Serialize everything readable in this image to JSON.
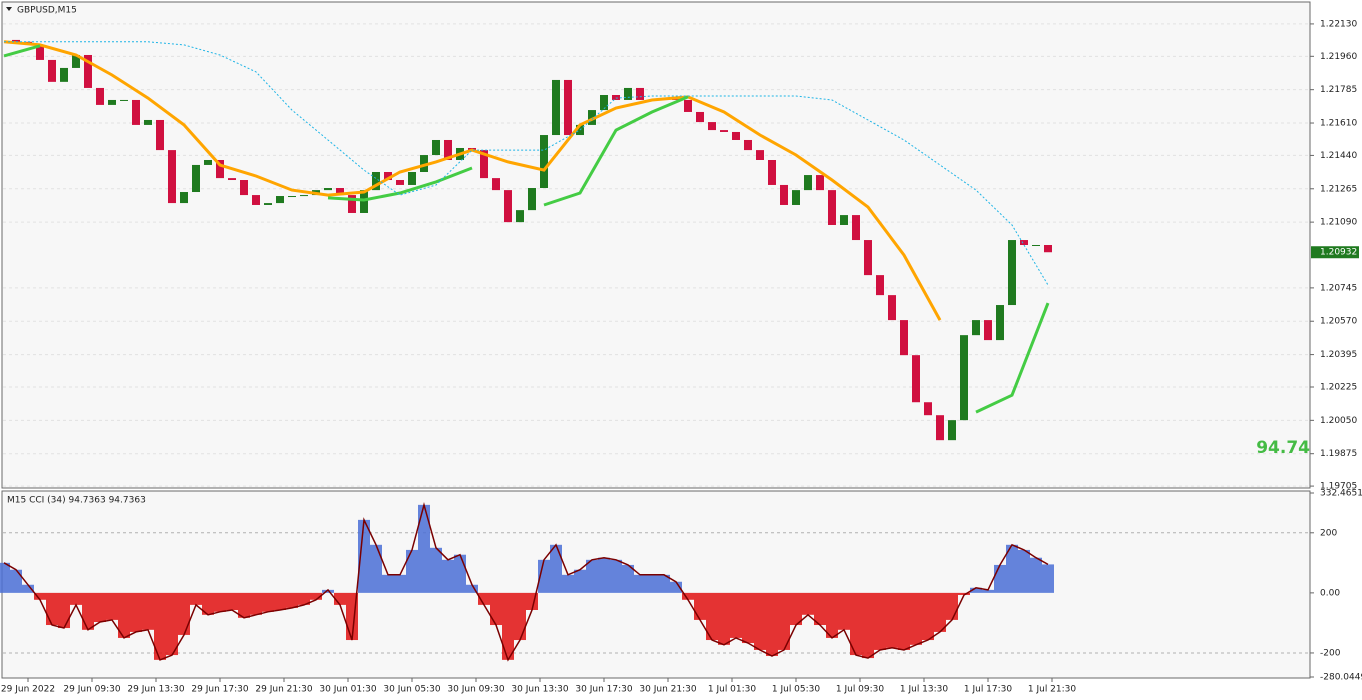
{
  "chart_data": [
    {
      "type": "candlestick",
      "title": "GBPUSD,M15",
      "up_color": "#1f7a1f",
      "down_color": "#d01040",
      "ylim": [
        1.19695,
        1.22245
      ],
      "yticks": [
        {
          "value": 1.2213,
          "label": "1.22130"
        },
        {
          "value": 1.2196,
          "label": "1.21960"
        },
        1.21785,
        {
          "value": 1.2161,
          "label": "1.21610"
        },
        {
          "value": 1.2144,
          "label": "1.21440"
        },
        1.21265,
        {
          "value": 1.2109,
          "label": "1.21090"
        },
        1.20745,
        {
          "value": 1.2057,
          "label": "1.20570"
        },
        1.20395,
        1.20225,
        {
          "value": 1.2005,
          "label": "1.20050"
        },
        1.19875,
        1.19705
      ],
      "grid": true,
      "last_price_label": "1.20932",
      "close": [
        1.22046,
        1.22036,
        1.2202,
        1.21941,
        1.21826,
        1.21899,
        1.21967,
        1.21794,
        1.21705,
        1.21731,
        1.21731,
        1.216,
        1.21626,
        1.21468,
        1.2119,
        1.21248,
        1.2139,
        1.21416,
        1.21321,
        1.21311,
        1.21232,
        1.2118,
        1.2119,
        1.21227,
        1.21227,
        1.21232,
        1.21258,
        1.21269,
        1.21232,
        1.21138,
        1.21258,
        1.21353,
        1.21311,
        1.21285,
        1.21353,
        1.21442,
        1.21521,
        1.21416,
        1.21479,
        1.21468,
        1.21321,
        1.21258,
        1.2109,
        1.21153,
        1.21269,
        1.21547,
        1.21836,
        1.21547,
        1.216,
        1.21678,
        1.21757,
        1.21731,
        1.21794,
        1.21731,
        1.21731,
        1.21741,
        1.21731,
        1.21668,
        1.21615,
        1.21573,
        1.21563,
        1.21521,
        1.21468,
        1.21416,
        1.21285,
        1.2118,
        1.21258,
        1.21337,
        1.21258,
        1.21075,
        1.21127,
        1.20996,
        1.20812,
        1.20707,
        1.20576,
        1.20392,
        1.20145,
        1.20077,
        1.19946,
        1.20051,
        1.20497,
        1.20576,
        1.20471,
        1.20655,
        1.20996,
        1.2097,
        1.2097,
        1.20932
      ],
      "lines": [
        {
          "color": "#ffa500",
          "style": "solid",
          "values": [
            1.22036,
            1.2202,
            1.21967,
            1.21862,
            1.21741,
            1.216,
            1.2139,
            1.21332,
            1.21258,
            1.21232,
            1.21248,
            1.21353,
            1.21406,
            1.21468,
            1.21406,
            1.21363,
            1.216,
            1.21689,
            1.21731,
            1.21747,
            1.21668,
            1.21547,
            1.21442,
            1.21311,
            1.21169,
            1.20917,
            1.20576,
            null,
            null,
            null
          ]
        },
        {
          "color": "#44cc44",
          "style": "solid",
          "values": [
            1.21962,
            1.22015,
            null,
            null,
            null,
            null,
            null,
            null,
            null,
            1.21217,
            1.21206,
            1.21243,
            1.21301,
            1.21374,
            null,
            1.2118,
            1.21243,
            1.21573,
            1.21668,
            1.21747,
            null,
            null,
            null,
            null,
            null,
            null,
            null,
            1.20093,
            1.20182,
            1.20665
          ]
        },
        {
          "color": "#1eb4e6",
          "style": "dotted",
          "values": [
            1.22036,
            1.22036,
            1.22036,
            1.22036,
            1.22036,
            1.2202,
            1.21967,
            1.21878,
            1.21678,
            1.21521,
            1.21363,
            1.21232,
            1.21285,
            1.21468,
            1.21468,
            1.21468,
            1.21574,
            1.21741,
            1.21752,
            1.21752,
            1.21752,
            1.21752,
            1.21752,
            1.21731,
            1.21626,
            1.21521,
            1.2139,
            1.21258,
            1.21075,
            1.2076
          ]
        }
      ]
    },
    {
      "type": "histogram-line",
      "title": "M15 CCI (34) 94.7363 94.7363",
      "annotation": "94.74",
      "pos_color": "#4a6fd6",
      "neg_color": "#e01010",
      "line_color": "#7a0000",
      "ylim": [
        -280.0449,
        332.4651
      ],
      "yticks": [
        332.4651,
        200,
        {
          "value": 0,
          "label": "0.00"
        },
        -200,
        -280.0449
      ],
      "levels": [
        200,
        -200
      ],
      "values": [
        100,
        77,
        27,
        -23,
        -107,
        -117,
        -40,
        -123,
        -97,
        -90,
        -150,
        -130,
        -123,
        -223,
        -207,
        -140,
        -40,
        -73,
        -63,
        -57,
        -83,
        -73,
        -63,
        -57,
        -50,
        -40,
        -23,
        10,
        -40,
        -157,
        243,
        160,
        60,
        60,
        143,
        293,
        150,
        110,
        127,
        27,
        -40,
        -107,
        -223,
        -157,
        -57,
        110,
        160,
        60,
        77,
        110,
        117,
        110,
        93,
        60,
        60,
        60,
        37,
        -23,
        -90,
        -157,
        -173,
        -150,
        -167,
        -190,
        -210,
        -190,
        -107,
        -73,
        -107,
        -150,
        -123,
        -207,
        -217,
        -190,
        -183,
        -190,
        -173,
        -157,
        -130,
        -90,
        -7,
        17,
        10,
        93,
        160,
        143,
        117,
        94.7363
      ],
      "time_labels": [
        "29 Jun 2022",
        "29 Jun 09:30",
        "29 Jun 13:30",
        "29 Jun 17:30",
        "29 Jun 21:30",
        "30 Jun 01:30",
        "30 Jun 05:30",
        "30 Jun 09:30",
        "30 Jun 13:30",
        "30 Jun 17:30",
        "30 Jun 21:30",
        "1 Jul 01:30",
        "1 Jul 05:30",
        "1 Jul 09:30",
        "1 Jul 13:30",
        "1 Jul 17:30",
        "1 Jul 21:30"
      ]
    }
  ]
}
